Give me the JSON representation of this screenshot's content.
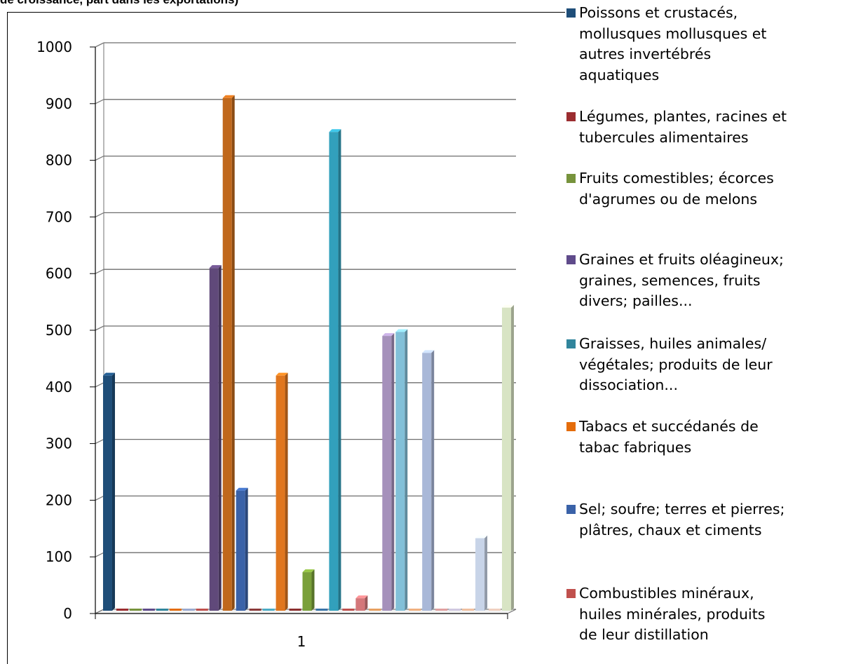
{
  "header": {
    "partial_title": "de croissance, part dans les exportations)"
  },
  "chart_data": {
    "type": "bar",
    "categories": [
      "1"
    ],
    "ylim": [
      0,
      1000
    ],
    "yticks": [
      0,
      100,
      200,
      300,
      400,
      500,
      600,
      700,
      800,
      900,
      1000
    ],
    "grid": true,
    "legend_position": "right",
    "series": [
      {
        "name": "Poissons et crustacés, mollusques mollusques et autres invertébrés aquatiques",
        "values": [
          415
        ],
        "color": "#1f4e79"
      },
      {
        "name": "Légumes, plantes, racines et tubercules alimentaires",
        "values": [
          0
        ],
        "color": "#9b2d30"
      },
      {
        "name": "Fruits comestibles; écorces d'agrumes ou de melons",
        "values": [
          0
        ],
        "color": "#77933c"
      },
      {
        "name": "Graines et fruits oléagineux; graines, semences, fruits divers; pailles...",
        "values": [
          0
        ],
        "color": "#5f4b8b"
      },
      {
        "name": "Graisses, huiles animales/ végétales; produits de leur dissociation...",
        "values": [
          0
        ],
        "color": "#31859c"
      },
      {
        "name": "Tabacs et succédanés de tabac fabriques",
        "values": [
          0
        ],
        "color": "#e46c0a"
      },
      {
        "name": "",
        "values": [
          0
        ],
        "color": "#9aaad0"
      },
      {
        "name": "",
        "values": [
          0
        ],
        "color": "#c0504d"
      },
      {
        "name": "",
        "values": [
          605
        ],
        "color": "#60497a"
      },
      {
        "name": "",
        "values": [
          905
        ],
        "color": "#c0681c"
      },
      {
        "name": "Sel; soufre; terres et pierres; plâtres, chaux et ciments",
        "values": [
          212
        ],
        "color": "#3a62a8"
      },
      {
        "name": "",
        "values": [
          0
        ],
        "color": "#8b3a3a"
      },
      {
        "name": "",
        "values": [
          0
        ],
        "color": "#4bacc6"
      },
      {
        "name": "",
        "values": [
          415
        ],
        "color": "#e0761e"
      },
      {
        "name": "",
        "values": [
          0
        ],
        "color": "#8c2f2f"
      },
      {
        "name": "",
        "values": [
          68
        ],
        "color": "#7aa03a"
      },
      {
        "name": "",
        "values": [
          0
        ],
        "color": "#3a74a8"
      },
      {
        "name": "",
        "values": [
          845
        ],
        "color": "#32a0bc"
      },
      {
        "name": "Combustibles minéraux, huiles minérales, produits de leur distillation",
        "values": [
          0
        ],
        "color": "#c0504d"
      },
      {
        "name": "",
        "values": [
          22
        ],
        "color": "#d4777a"
      },
      {
        "name": "",
        "values": [
          0
        ],
        "color": "#e8a060"
      },
      {
        "name": "",
        "values": [
          485
        ],
        "color": "#a591bb"
      },
      {
        "name": "",
        "values": [
          492
        ],
        "color": "#82c0d8"
      },
      {
        "name": "",
        "values": [
          0
        ],
        "color": "#f0b080"
      },
      {
        "name": "",
        "values": [
          455
        ],
        "color": "#a9b8d8"
      },
      {
        "name": "",
        "values": [
          0
        ],
        "color": "#e0a0a0"
      },
      {
        "name": "",
        "values": [
          0
        ],
        "color": "#d0c8e0"
      },
      {
        "name": "",
        "values": [
          0
        ],
        "color": "#f0c0a0"
      },
      {
        "name": "",
        "values": [
          128
        ],
        "color": "#c8d4e8"
      },
      {
        "name": "",
        "values": [
          0
        ],
        "color": "#f0d0c0"
      },
      {
        "name": "",
        "values": [
          535
        ],
        "color": "#d8e4c4"
      }
    ]
  },
  "legend": {
    "items": [
      {
        "label": "Poissons et crustacés,\nmollusques mollusques et\nautres invertébrés\naquatiques",
        "color": "#1f4e79"
      },
      {
        "label": "Légumes, plantes, racines et\ntubercules alimentaires",
        "color": "#9b2d30"
      },
      {
        "label": "Fruits comestibles; écorces\nd'agrumes ou de melons",
        "color": "#77933c"
      },
      {
        "label": "Graines et fruits oléagineux;\ngraines, semences, fruits\ndivers; pailles...",
        "color": "#5f4b8b"
      },
      {
        "label": "Graisses, huiles animales/\nvégétales; produits de leur\ndissociation...",
        "color": "#31859c"
      },
      {
        "label": "Tabacs et succédanés de\ntabac fabriques",
        "color": "#e46c0a"
      },
      {
        "label": "Sel; soufre; terres et pierres;\nplâtres, chaux et ciments",
        "color": "#3a62a8"
      },
      {
        "label": "Combustibles minéraux,\nhuiles minérales, produits\nde leur distillation",
        "color": "#c0504d"
      }
    ]
  }
}
